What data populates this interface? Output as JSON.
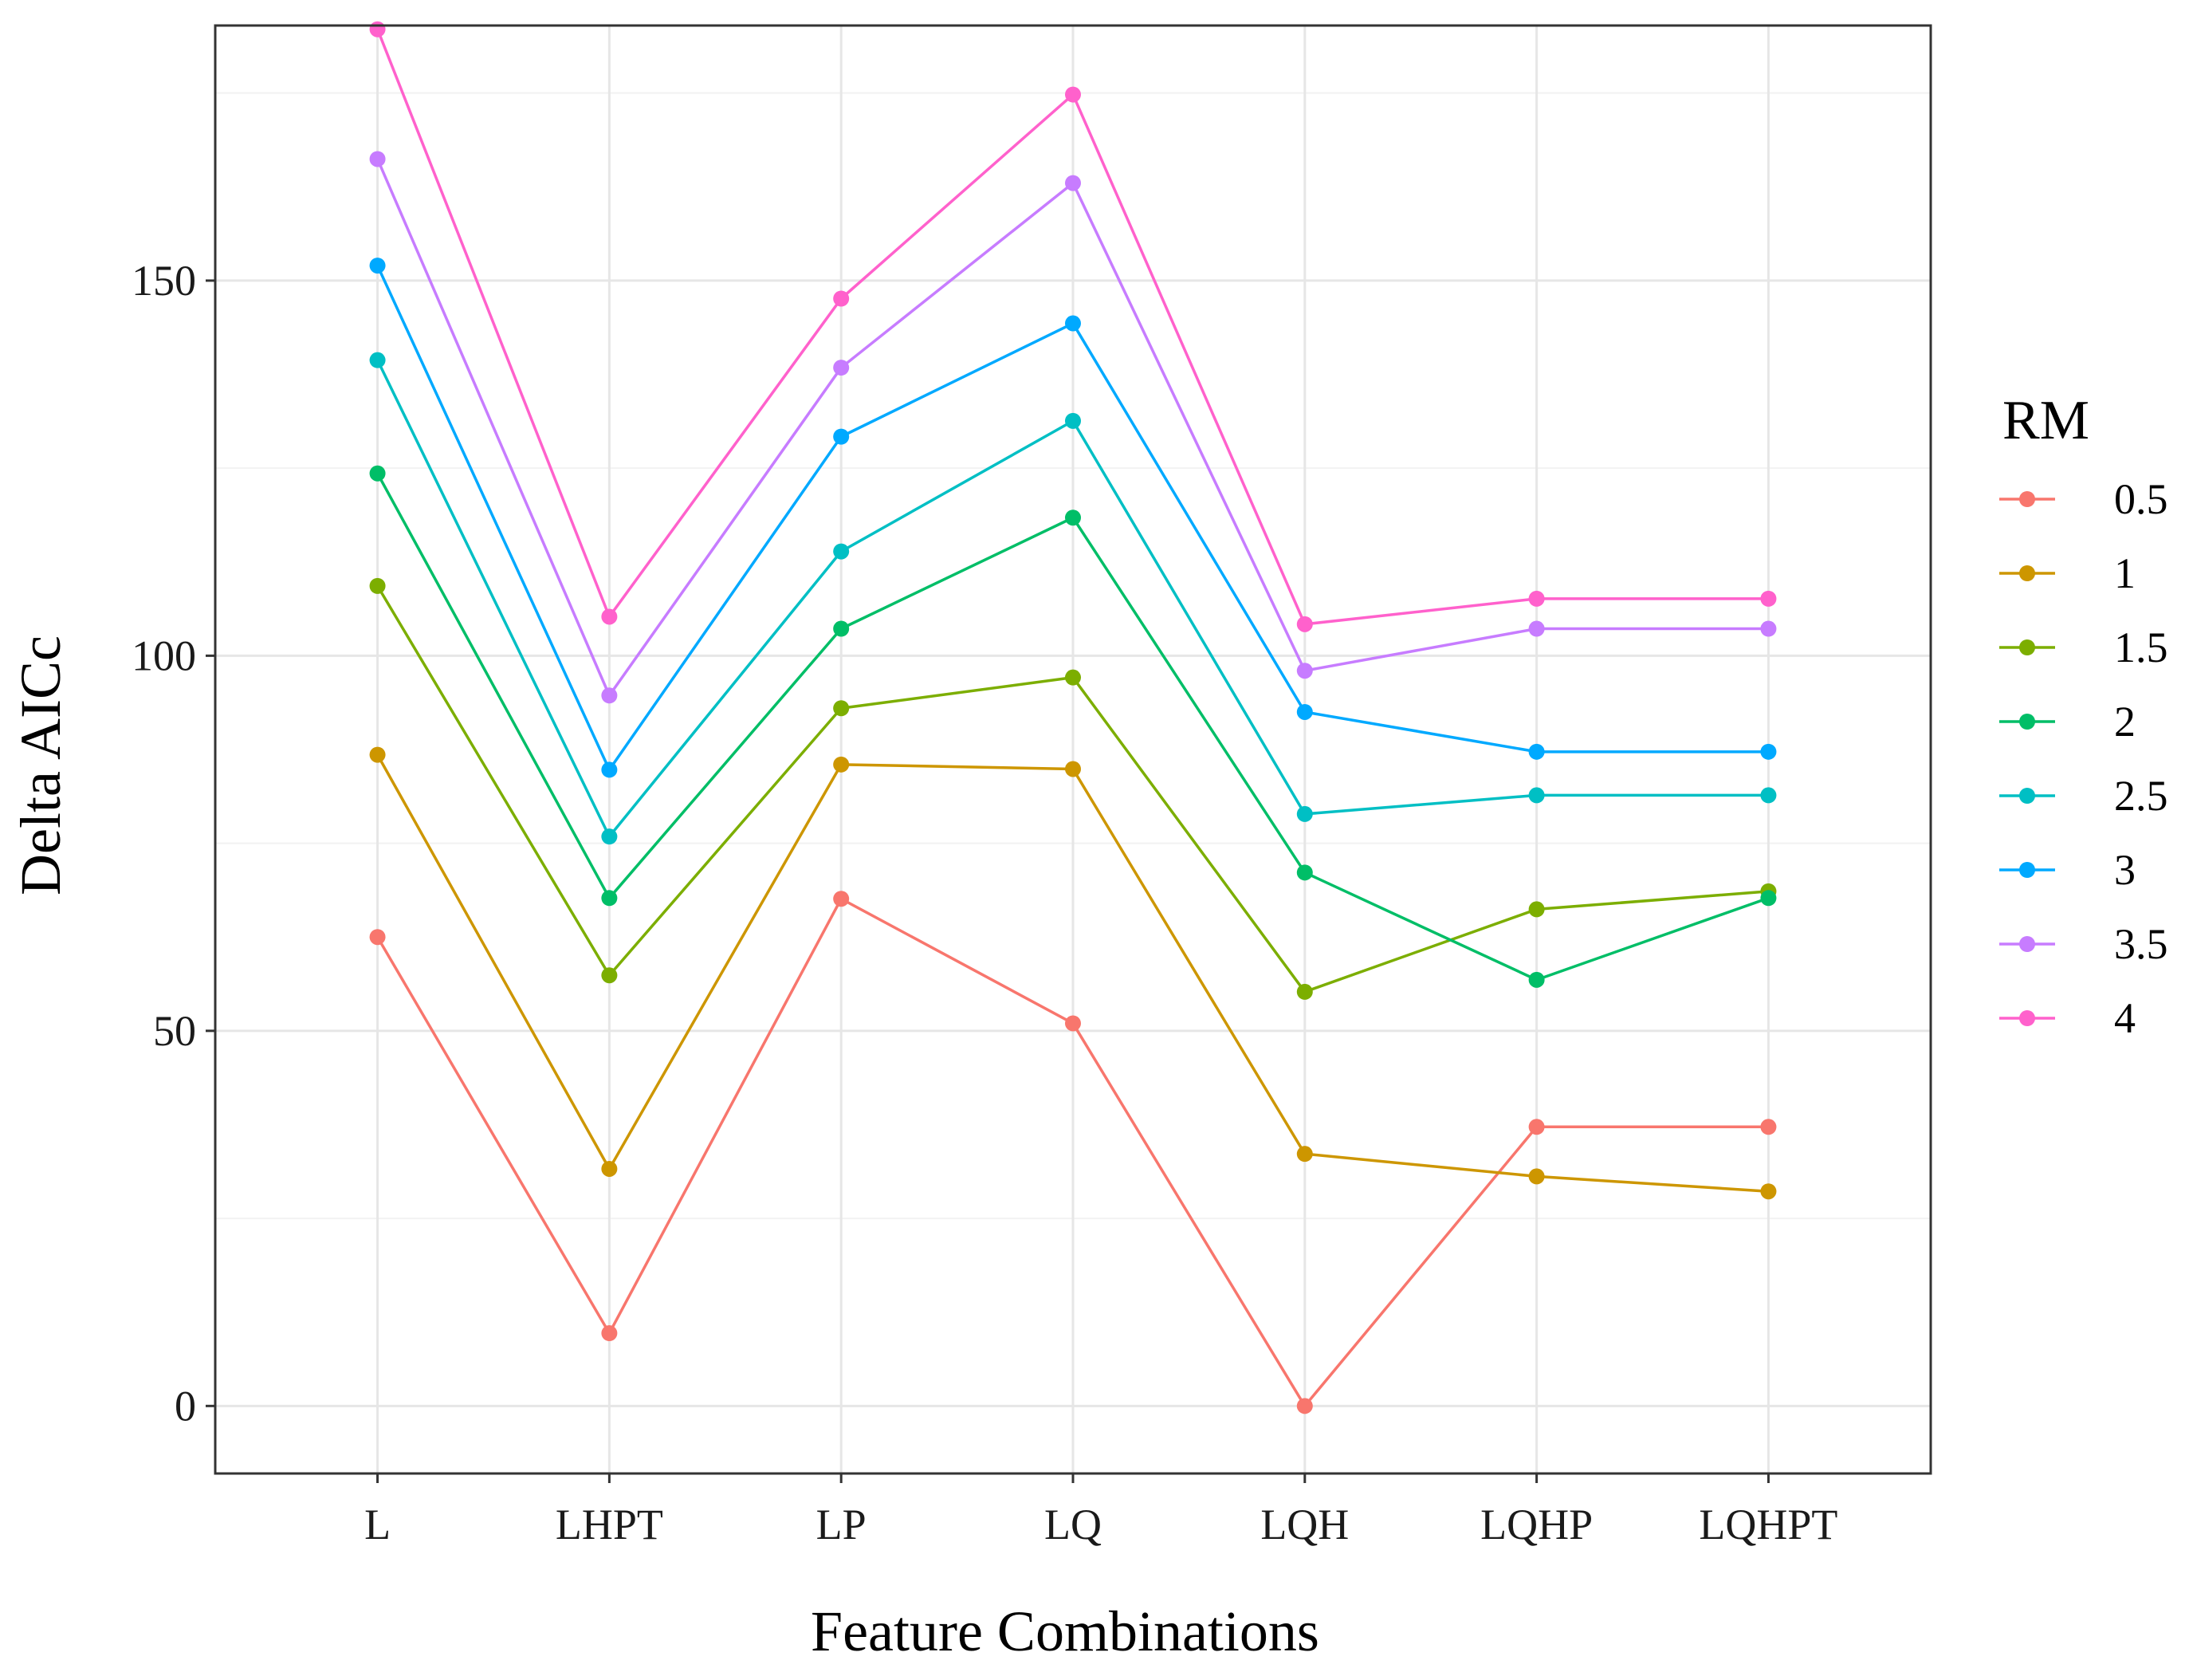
{
  "chart_data": {
    "type": "line",
    "title": "",
    "xlabel": "Feature Combinations",
    "ylabel": "Delta AICc",
    "categories": [
      "L",
      "LHPT",
      "LP",
      "LQ",
      "LQH",
      "LQHP",
      "LQHPT"
    ],
    "ylim": [
      -9,
      184
    ],
    "yticks": [
      0,
      50,
      100,
      150
    ],
    "grid": true,
    "legend": {
      "title": "RM",
      "position": "right"
    },
    "series": [
      {
        "name": "0.5",
        "color": "#F8766D",
        "values": [
          62.5,
          9.7,
          67.6,
          51.0,
          0.0,
          37.2,
          37.2
        ]
      },
      {
        "name": "1",
        "color": "#CD9600",
        "values": [
          86.8,
          31.6,
          85.5,
          84.9,
          33.6,
          30.6,
          28.6
        ]
      },
      {
        "name": "1.5",
        "color": "#7CAE00",
        "values": [
          109.3,
          57.4,
          93.0,
          97.1,
          55.2,
          66.2,
          68.6
        ]
      },
      {
        "name": "2",
        "color": "#00BE67",
        "values": [
          124.3,
          67.7,
          103.6,
          118.4,
          71.1,
          56.8,
          67.7
        ]
      },
      {
        "name": "2.5",
        "color": "#00BFC4",
        "values": [
          139.4,
          75.9,
          113.9,
          131.3,
          78.9,
          81.4,
          81.4
        ]
      },
      {
        "name": "3",
        "color": "#00A9FF",
        "values": [
          152.0,
          84.8,
          129.2,
          144.3,
          92.5,
          87.2,
          87.2
        ]
      },
      {
        "name": "3.5",
        "color": "#C77CFF",
        "values": [
          166.2,
          94.7,
          138.4,
          163.0,
          98.0,
          103.6,
          103.6
        ]
      },
      {
        "name": "4",
        "color": "#FF61CC",
        "values": [
          183.5,
          105.2,
          147.6,
          174.8,
          104.2,
          107.6,
          107.6
        ]
      }
    ]
  }
}
